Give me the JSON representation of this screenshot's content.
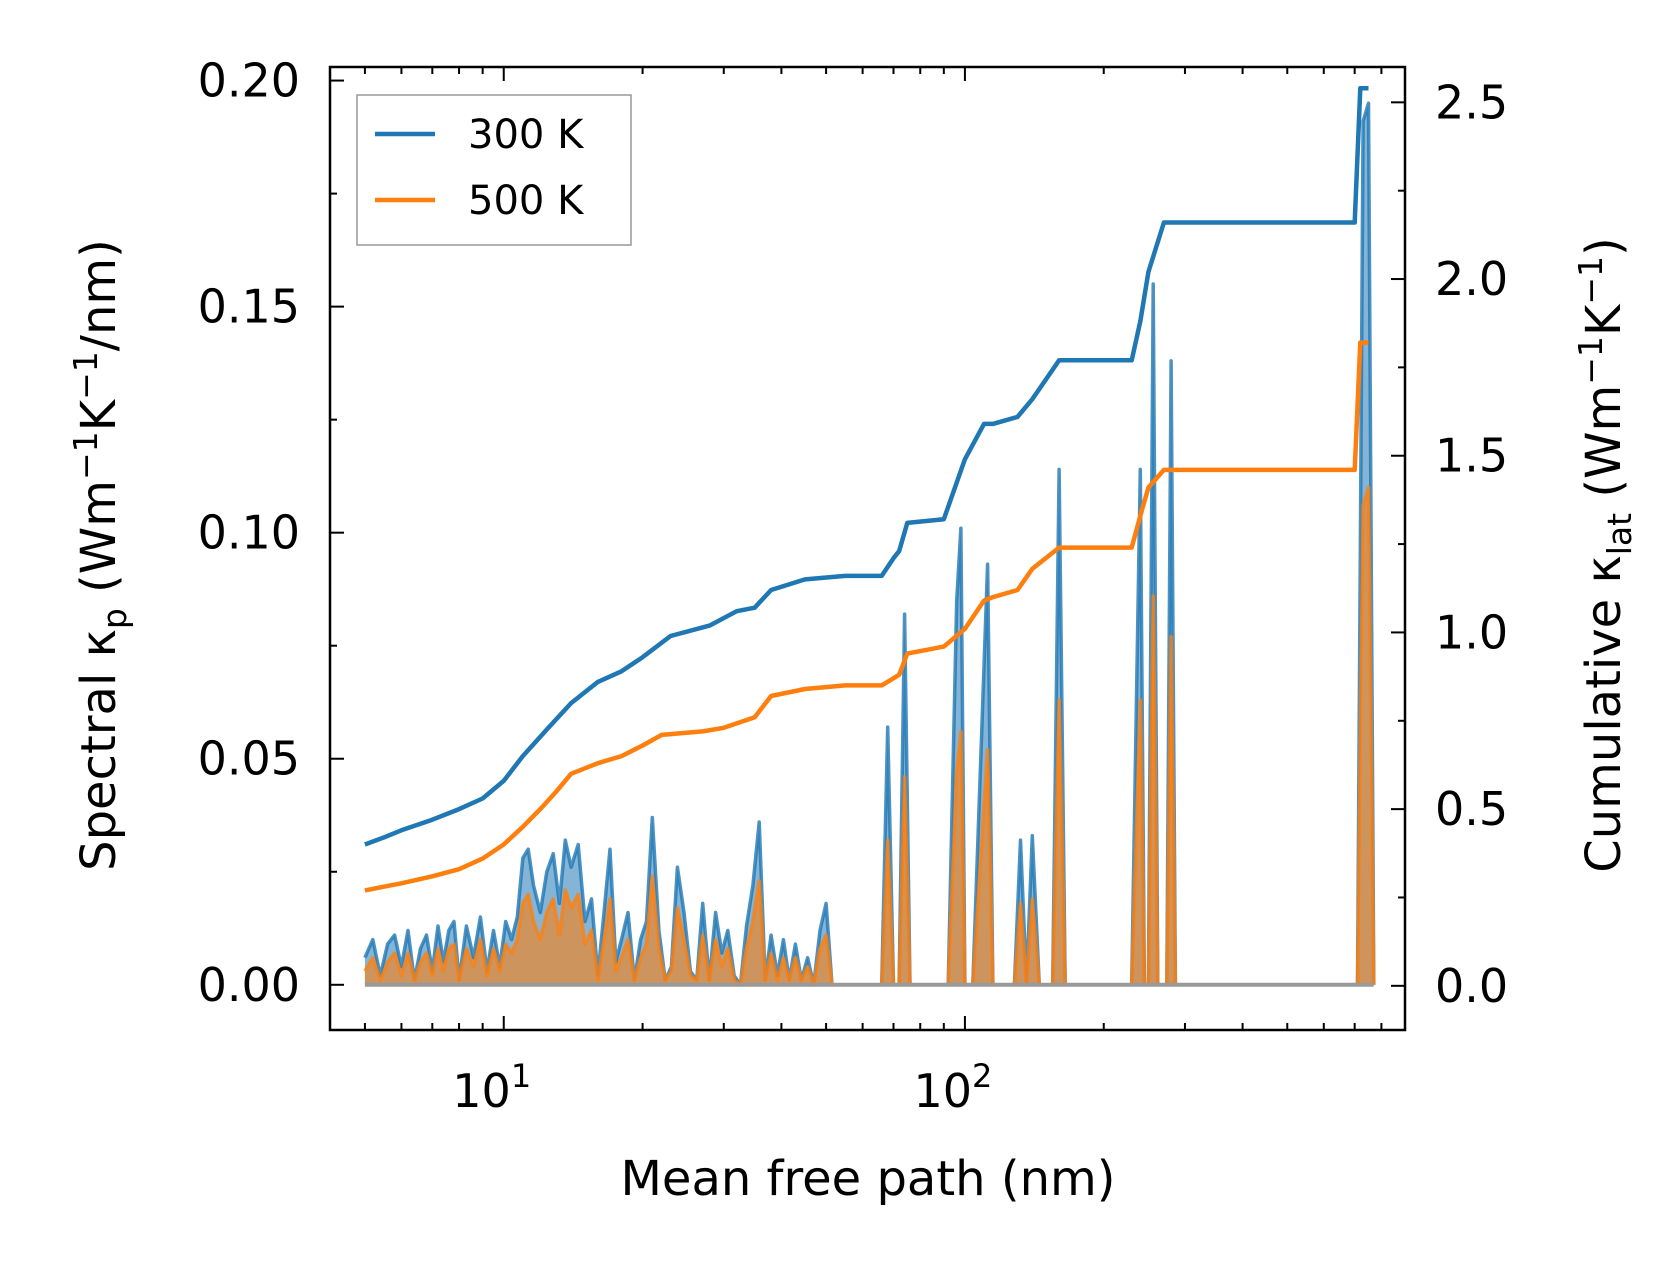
{
  "chart_data": {
    "type": "line",
    "title": "",
    "xlabel": "Mean free path (nm)",
    "ylabel_left": {
      "base": "Spectral κ",
      "sub": "p",
      "unit_open": " (Wm",
      "sup1": "−1",
      "mid": "K",
      "sup2": "−1",
      "unit_close": "/nm)"
    },
    "ylabel_right": {
      "base": "Cumulative κ",
      "sub": "lat",
      "unit_open": " (Wm",
      "sup1": "−1",
      "mid": "K",
      "sup2": "−1",
      "unit_close": ")"
    },
    "xscale": "log",
    "xlim": [
      4.2,
      900
    ],
    "ylim_left": [
      -0.01,
      0.203
    ],
    "ylim_right": [
      -0.125,
      2.6
    ],
    "xticks": [
      {
        "base": "10",
        "exp": "1",
        "value": 10
      },
      {
        "base": "10",
        "exp": "2",
        "value": 100
      }
    ],
    "yticks_left": [
      "0.00",
      "0.05",
      "0.10",
      "0.15",
      "0.20"
    ],
    "yticks_right": [
      "0.0",
      "0.5",
      "1.0",
      "1.5",
      "2.0",
      "2.5"
    ],
    "legend": {
      "location": "upper-left",
      "entries": [
        "300 K",
        "500 K"
      ]
    },
    "colors": {
      "300K": "#1f77b4",
      "500K": "#ff7f0e"
    },
    "series": [
      {
        "name": "300 K",
        "axis": "right",
        "kind": "cumulative",
        "x": [
          5.0,
          5.5,
          6.0,
          7.0,
          8.0,
          9.0,
          10.0,
          11.0,
          12.5,
          14.0,
          16.0,
          18.0,
          20.0,
          23.0,
          28.0,
          32.0,
          35.0,
          38.0,
          45.0,
          55.0,
          66.0,
          70.0,
          72.0,
          75.0,
          90.0,
          100.0,
          110.0,
          115.0,
          130.0,
          140.0,
          160.0,
          230.0,
          240.0,
          250.0,
          270.0,
          700.0,
          720.0,
          750.0
        ],
        "values": [
          0.4,
          0.42,
          0.44,
          0.47,
          0.5,
          0.53,
          0.58,
          0.65,
          0.73,
          0.8,
          0.86,
          0.89,
          0.93,
          0.99,
          1.02,
          1.06,
          1.07,
          1.12,
          1.15,
          1.16,
          1.16,
          1.21,
          1.23,
          1.31,
          1.32,
          1.49,
          1.59,
          1.59,
          1.61,
          1.66,
          1.77,
          1.77,
          1.88,
          2.02,
          2.16,
          2.16,
          2.54,
          2.54
        ]
      },
      {
        "name": "500 K",
        "axis": "right",
        "kind": "cumulative",
        "x": [
          5.0,
          6.0,
          7.0,
          8.0,
          9.0,
          10.0,
          11.0,
          12.0,
          13.0,
          14.0,
          16.0,
          18.0,
          20.0,
          22.0,
          27.0,
          30.0,
          35.0,
          38.0,
          45.0,
          55.0,
          66.0,
          72.0,
          75.0,
          90.0,
          100.0,
          110.0,
          115.0,
          130.0,
          140.0,
          160.0,
          230.0,
          240.0,
          250.0,
          270.0,
          700.0,
          720.0,
          750.0
        ],
        "values": [
          0.27,
          0.29,
          0.31,
          0.33,
          0.36,
          0.4,
          0.45,
          0.5,
          0.55,
          0.6,
          0.63,
          0.65,
          0.68,
          0.71,
          0.72,
          0.73,
          0.76,
          0.82,
          0.84,
          0.85,
          0.85,
          0.88,
          0.94,
          0.96,
          1.01,
          1.09,
          1.1,
          1.12,
          1.18,
          1.24,
          1.24,
          1.33,
          1.41,
          1.46,
          1.46,
          1.82,
          1.82
        ]
      },
      {
        "name": "300 K",
        "axis": "left",
        "kind": "spectral",
        "x": [
          5.0,
          5.2,
          5.4,
          5.6,
          5.8,
          6.0,
          6.2,
          6.4,
          6.6,
          6.8,
          7.0,
          7.2,
          7.4,
          7.6,
          7.8,
          8.0,
          8.3,
          8.6,
          8.9,
          9.2,
          9.5,
          9.8,
          10.1,
          10.4,
          10.7,
          11.0,
          11.3,
          11.6,
          12.0,
          12.4,
          12.8,
          13.2,
          13.6,
          14.0,
          14.5,
          15.0,
          15.5,
          16.0,
          16.5,
          17.0,
          17.5,
          18.0,
          18.6,
          19.2,
          19.8,
          20.4,
          21.0,
          21.7,
          22.4,
          23.1,
          23.8,
          24.6,
          25.4,
          26.2,
          27.0,
          27.9,
          28.8,
          29.7,
          30.6,
          31.6,
          32.6,
          33.6,
          34.7,
          35.8,
          36.9,
          38.0,
          39.2,
          40.4,
          41.6,
          42.9,
          44.2,
          45.6,
          47.0,
          48.5,
          50.0,
          51.5,
          53.0,
          66.0,
          68.0,
          70.0,
          72.0,
          74.0,
          76.0,
          78.0,
          92.0,
          96.0,
          98.0,
          100.0,
          102.0,
          104.0,
          112.0,
          115.0,
          118.0,
          128.0,
          132.0,
          136.0,
          140.0,
          145.0,
          150.0,
          155.0,
          160.0,
          165.0,
          230.0,
          240.0,
          245.0,
          250.0,
          256.0,
          262.0,
          268.0,
          274.0,
          280.0,
          286.0,
          292.0,
          690.0,
          710.0,
          730.0,
          750.0,
          770.0
        ],
        "values": [
          0.006,
          0.01,
          0.002,
          0.009,
          0.011,
          0.004,
          0.012,
          0.001,
          0.008,
          0.011,
          0.003,
          0.013,
          0.005,
          0.012,
          0.014,
          0.001,
          0.013,
          0.006,
          0.015,
          0.003,
          0.012,
          0.004,
          0.014,
          0.01,
          0.015,
          0.028,
          0.03,
          0.022,
          0.016,
          0.025,
          0.029,
          0.018,
          0.032,
          0.026,
          0.031,
          0.014,
          0.019,
          0.002,
          0.016,
          0.03,
          0.005,
          0.01,
          0.016,
          0.001,
          0.01,
          0.014,
          0.037,
          0.012,
          0.001,
          0.004,
          0.026,
          0.016,
          0.003,
          0.001,
          0.018,
          0.001,
          0.016,
          0.007,
          0.012,
          0.002,
          0.0,
          0.013,
          0.022,
          0.036,
          0.001,
          0.011,
          0.002,
          0.01,
          0.001,
          0.009,
          0.001,
          0.006,
          0.0,
          0.012,
          0.018,
          0.0,
          0.0,
          0.0,
          0.057,
          0.0,
          0.0,
          0.082,
          0.0,
          0.0,
          0.0,
          0.085,
          0.101,
          0.0,
          0.0,
          0.0,
          0.093,
          0.0,
          0.0,
          0.0,
          0.032,
          0.0,
          0.033,
          0.0,
          0.0,
          0.0,
          0.114,
          0.0,
          0.0,
          0.114,
          0.0,
          0.0,
          0.155,
          0.0,
          0.0,
          0.0,
          0.138,
          0.0,
          0.0,
          0.0,
          0.0,
          0.191,
          0.195,
          0.0
        ]
      },
      {
        "name": "500 K",
        "axis": "left",
        "kind": "spectral",
        "x": [
          5.0,
          5.2,
          5.4,
          5.6,
          5.8,
          6.0,
          6.2,
          6.4,
          6.6,
          6.8,
          7.0,
          7.2,
          7.4,
          7.6,
          7.8,
          8.0,
          8.3,
          8.6,
          8.9,
          9.2,
          9.5,
          9.8,
          10.1,
          10.4,
          10.7,
          11.0,
          11.3,
          11.6,
          12.0,
          12.4,
          12.8,
          13.2,
          13.6,
          14.0,
          14.5,
          15.0,
          15.5,
          16.0,
          16.5,
          17.0,
          17.5,
          18.0,
          18.6,
          19.2,
          19.8,
          20.4,
          21.0,
          21.7,
          22.4,
          23.1,
          23.8,
          24.6,
          25.4,
          26.2,
          27.0,
          27.9,
          28.8,
          29.7,
          30.6,
          31.6,
          32.6,
          33.6,
          34.7,
          35.8,
          36.9,
          38.0,
          39.2,
          40.4,
          41.6,
          42.9,
          44.2,
          45.6,
          47.0,
          48.5,
          50.0,
          51.5,
          53.0,
          66.0,
          68.0,
          70.0,
          72.0,
          74.0,
          76.0,
          78.0,
          92.0,
          96.0,
          98.0,
          100.0,
          102.0,
          104.0,
          112.0,
          115.0,
          118.0,
          128.0,
          132.0,
          136.0,
          140.0,
          145.0,
          150.0,
          155.0,
          160.0,
          165.0,
          230.0,
          240.0,
          245.0,
          250.0,
          256.0,
          262.0,
          268.0,
          274.0,
          280.0,
          286.0,
          292.0,
          690.0,
          710.0,
          730.0,
          750.0,
          770.0
        ],
        "values": [
          0.003,
          0.006,
          0.001,
          0.005,
          0.007,
          0.002,
          0.007,
          0.001,
          0.005,
          0.007,
          0.002,
          0.008,
          0.003,
          0.008,
          0.009,
          0.001,
          0.008,
          0.004,
          0.01,
          0.002,
          0.008,
          0.003,
          0.009,
          0.007,
          0.01,
          0.018,
          0.02,
          0.014,
          0.01,
          0.016,
          0.019,
          0.011,
          0.021,
          0.017,
          0.02,
          0.009,
          0.012,
          0.001,
          0.01,
          0.019,
          0.003,
          0.006,
          0.01,
          0.001,
          0.006,
          0.009,
          0.024,
          0.008,
          0.001,
          0.003,
          0.017,
          0.01,
          0.002,
          0.001,
          0.011,
          0.001,
          0.01,
          0.004,
          0.008,
          0.001,
          0.0,
          0.008,
          0.014,
          0.023,
          0.001,
          0.007,
          0.001,
          0.006,
          0.001,
          0.006,
          0.001,
          0.004,
          0.0,
          0.008,
          0.011,
          0.0,
          0.0,
          0.0,
          0.032,
          0.0,
          0.0,
          0.046,
          0.0,
          0.0,
          0.0,
          0.047,
          0.056,
          0.0,
          0.0,
          0.0,
          0.052,
          0.0,
          0.0,
          0.0,
          0.018,
          0.0,
          0.019,
          0.0,
          0.0,
          0.0,
          0.063,
          0.0,
          0.0,
          0.063,
          0.0,
          0.0,
          0.086,
          0.0,
          0.0,
          0.0,
          0.077,
          0.0,
          0.0,
          0.0,
          0.0,
          0.106,
          0.11,
          0.0
        ]
      }
    ]
  }
}
